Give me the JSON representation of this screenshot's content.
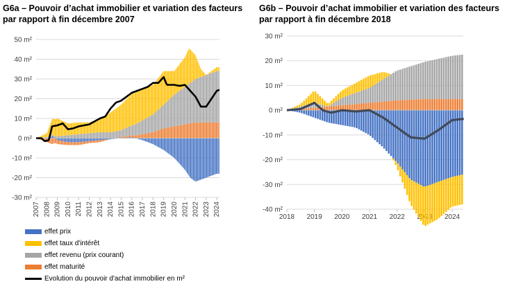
{
  "colors": {
    "prix": "#4472C4",
    "taux": "#FFC000",
    "revenu": "#A5A5A5",
    "maturite": "#ED7D31",
    "line1": "#000000",
    "line2": "#404A5A",
    "grid": "#D9D9D9"
  },
  "legend": {
    "items": [
      {
        "label": "effet prix",
        "color": "#4472C4",
        "kind": "bar"
      },
      {
        "label": "effet taux d'intérêt",
        "color": "#FFC000",
        "kind": "bar"
      },
      {
        "label": "effet revenu (prix courant)",
        "color": "#A5A5A5",
        "kind": "bar"
      },
      {
        "label": "effet maturité",
        "color": "#ED7D31",
        "kind": "bar"
      },
      {
        "label": "Evolution du pouvoir d'achat immobilier en m²",
        "color": "#000000",
        "kind": "line"
      }
    ]
  },
  "chart_data": [
    {
      "id": "G6a",
      "type": "bar",
      "stacked": true,
      "title": "G6a – Pouvoir d’achat immobilier et variation des facteurs par rapport à fin décembre 2007",
      "ylim": [
        -30,
        50
      ],
      "yticks": [
        -30,
        -20,
        -10,
        0,
        10,
        20,
        30,
        40,
        50
      ],
      "ytick_labels": [
        "-30 m²",
        "-20 m²",
        "-10 m²",
        "0 m²",
        "10 m²",
        "20 m²",
        "30 m²",
        "40 m²",
        "50 m²"
      ],
      "x_start": 2007.0,
      "x_end": 2024.25,
      "xticks": [
        "2007",
        "2008",
        "2009",
        "2010",
        "2011",
        "2012",
        "2013",
        "2014",
        "2015",
        "2016",
        "2017",
        "2018",
        "2019",
        "2020",
        "2021",
        "2022",
        "2023",
        "2024"
      ],
      "series_points": {
        "prix": [
          [
            2007,
            0
          ],
          [
            2008,
            0
          ],
          [
            2008.6,
            1
          ],
          [
            2009,
            -1
          ],
          [
            2010,
            -2
          ],
          [
            2011,
            -2
          ],
          [
            2012,
            -1.5
          ],
          [
            2013,
            -1
          ],
          [
            2014,
            -0.5
          ],
          [
            2015,
            0
          ],
          [
            2016,
            0.5
          ],
          [
            2017,
            -1
          ],
          [
            2018,
            -3
          ],
          [
            2019,
            -6
          ],
          [
            2020,
            -10
          ],
          [
            2021,
            -16
          ],
          [
            2021.5,
            -20
          ],
          [
            2022,
            -22
          ],
          [
            2023,
            -20
          ],
          [
            2024,
            -18
          ],
          [
            2024.25,
            -18
          ]
        ],
        "maturite": [
          [
            2007,
            0
          ],
          [
            2008,
            -2
          ],
          [
            2008.5,
            -3
          ],
          [
            2009,
            -2
          ],
          [
            2010,
            -1.5
          ],
          [
            2011,
            -1.5
          ],
          [
            2012,
            -1
          ],
          [
            2013,
            -1
          ],
          [
            2014,
            0
          ],
          [
            2015,
            0.5
          ],
          [
            2016,
            1
          ],
          [
            2017,
            2
          ],
          [
            2018,
            3
          ],
          [
            2019,
            5
          ],
          [
            2020,
            6
          ],
          [
            2021,
            7
          ],
          [
            2022,
            8
          ],
          [
            2023,
            8
          ],
          [
            2024,
            8
          ],
          [
            2024.25,
            8
          ]
        ],
        "revenu": [
          [
            2007,
            0
          ],
          [
            2008,
            0.5
          ],
          [
            2009,
            1
          ],
          [
            2010,
            1.5
          ],
          [
            2011,
            2
          ],
          [
            2012,
            2.5
          ],
          [
            2013,
            3
          ],
          [
            2014,
            3
          ],
          [
            2015,
            3.5
          ],
          [
            2016,
            5
          ],
          [
            2017,
            7
          ],
          [
            2018,
            9
          ],
          [
            2019,
            12
          ],
          [
            2020,
            16
          ],
          [
            2021,
            19
          ],
          [
            2022,
            22
          ],
          [
            2023,
            24
          ],
          [
            2024,
            26
          ],
          [
            2024.25,
            26
          ]
        ],
        "taux": [
          [
            2007,
            0
          ],
          [
            2008,
            2
          ],
          [
            2008.5,
            8
          ],
          [
            2009,
            9
          ],
          [
            2010,
            6
          ],
          [
            2011,
            6
          ],
          [
            2012,
            5.5
          ],
          [
            2013,
            7
          ],
          [
            2014,
            10
          ],
          [
            2015,
            13
          ],
          [
            2016,
            16
          ],
          [
            2017,
            16
          ],
          [
            2018,
            15
          ],
          [
            2019,
            17
          ],
          [
            2020,
            12
          ],
          [
            2021,
            15
          ],
          [
            2021.4,
            18
          ],
          [
            2022,
            12
          ],
          [
            2022.5,
            4
          ],
          [
            2023,
            0
          ],
          [
            2024,
            2
          ],
          [
            2024.25,
            2
          ]
        ],
        "line": [
          [
            2007,
            0
          ],
          [
            2007.5,
            0
          ],
          [
            2007.8,
            -1.5
          ],
          [
            2008.2,
            -1
          ],
          [
            2008.5,
            6
          ],
          [
            2009,
            6.5
          ],
          [
            2009.5,
            7.5
          ],
          [
            2010,
            4.5
          ],
          [
            2010.5,
            5
          ],
          [
            2011,
            6
          ],
          [
            2012,
            7
          ],
          [
            2013,
            10
          ],
          [
            2013.5,
            11
          ],
          [
            2014,
            15
          ],
          [
            2014.5,
            18
          ],
          [
            2015,
            19
          ],
          [
            2015.5,
            21
          ],
          [
            2016,
            23
          ],
          [
            2016.5,
            24
          ],
          [
            2017,
            25
          ],
          [
            2017.5,
            26
          ],
          [
            2018,
            28
          ],
          [
            2018.5,
            28
          ],
          [
            2019,
            31
          ],
          [
            2019.3,
            27
          ],
          [
            2020,
            27
          ],
          [
            2020.5,
            26.5
          ],
          [
            2021,
            27
          ],
          [
            2021.5,
            24
          ],
          [
            2022,
            21
          ],
          [
            2022.5,
            16
          ],
          [
            2023,
            16
          ],
          [
            2023.5,
            20
          ],
          [
            2024,
            24
          ],
          [
            2024.25,
            24.5
          ]
        ]
      }
    },
    {
      "id": "G6b",
      "type": "bar",
      "stacked": true,
      "title": "G6b – Pouvoir d’achat immobilier et variation des facteurs par rapport à fin décembre 2018",
      "ylim": [
        -40,
        30
      ],
      "yticks": [
        -40,
        -30,
        -20,
        -10,
        0,
        10,
        20,
        30
      ],
      "ytick_labels": [
        "-40 m²",
        "-30 m²",
        "-20 m²",
        "-10 m²",
        "0 m²",
        "10 m²",
        "20 m²",
        "30 m²"
      ],
      "x_start": 2018.0,
      "x_end": 2024.4,
      "xticks": [
        "2018",
        "2019",
        "2020",
        "2021",
        "2022",
        "2023",
        "2024"
      ],
      "series_points": {
        "prix": [
          [
            2018,
            0
          ],
          [
            2018.5,
            -1
          ],
          [
            2019,
            -3
          ],
          [
            2019.5,
            -5
          ],
          [
            2020,
            -6
          ],
          [
            2020.5,
            -7
          ],
          [
            2021,
            -10
          ],
          [
            2021.5,
            -15
          ],
          [
            2022,
            -21
          ],
          [
            2022.5,
            -28
          ],
          [
            2023,
            -31
          ],
          [
            2023.5,
            -29
          ],
          [
            2024,
            -27
          ],
          [
            2024.4,
            -26
          ]
        ],
        "maturite": [
          [
            2018,
            0
          ],
          [
            2018.5,
            0.5
          ],
          [
            2019,
            1
          ],
          [
            2020,
            2
          ],
          [
            2021,
            3
          ],
          [
            2022,
            4
          ],
          [
            2023,
            4.5
          ],
          [
            2024,
            4.5
          ],
          [
            2024.4,
            4.5
          ]
        ],
        "revenu": [
          [
            2018,
            0
          ],
          [
            2018.5,
            1
          ],
          [
            2019,
            2
          ],
          [
            2019.5,
            0
          ],
          [
            2020,
            3
          ],
          [
            2021,
            6
          ],
          [
            2021.5,
            9
          ],
          [
            2022,
            12
          ],
          [
            2023,
            15
          ],
          [
            2024,
            17.5
          ],
          [
            2024.4,
            18
          ]
        ],
        "taux": [
          [
            2018,
            0
          ],
          [
            2018.5,
            1
          ],
          [
            2019,
            5
          ],
          [
            2019.5,
            1
          ],
          [
            2020,
            3
          ],
          [
            2021,
            5
          ],
          [
            2021.5,
            3
          ],
          [
            2022,
            -2
          ],
          [
            2022.5,
            -10
          ],
          [
            2023,
            -16
          ],
          [
            2023.5,
            -15
          ],
          [
            2024,
            -12
          ],
          [
            2024.4,
            -12
          ]
        ],
        "line": [
          [
            2018,
            0
          ],
          [
            2018.5,
            0.5
          ],
          [
            2019,
            3
          ],
          [
            2019.3,
            0
          ],
          [
            2019.6,
            -1
          ],
          [
            2020,
            0
          ],
          [
            2020.5,
            -0.5
          ],
          [
            2021,
            0
          ],
          [
            2021.5,
            -3
          ],
          [
            2022,
            -7
          ],
          [
            2022.5,
            -11
          ],
          [
            2023,
            -11.5
          ],
          [
            2023.5,
            -8
          ],
          [
            2024,
            -4
          ],
          [
            2024.4,
            -3.5
          ]
        ]
      }
    }
  ]
}
